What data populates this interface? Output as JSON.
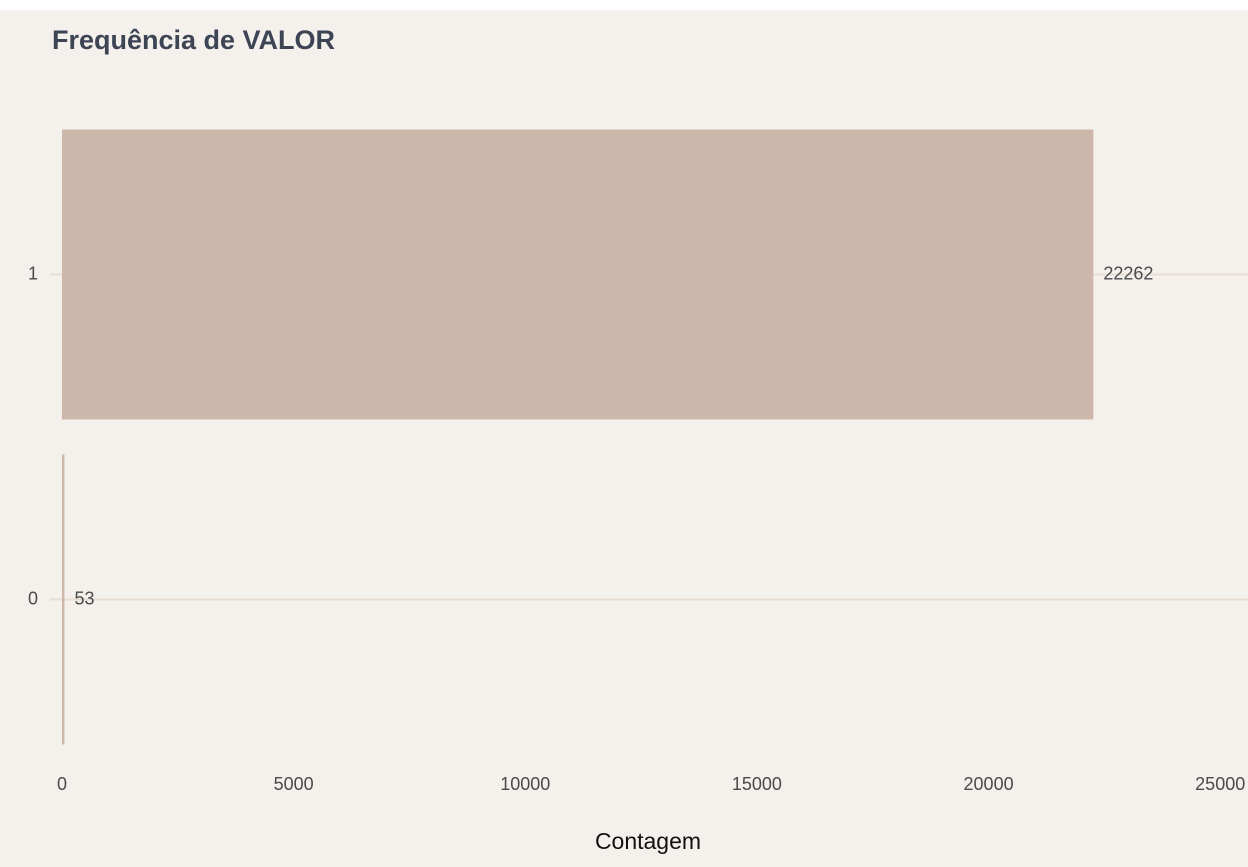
{
  "chart_data": {
    "type": "bar",
    "orientation": "horizontal",
    "title": "Frequência de VALOR",
    "x_label": "Contagem",
    "categories": [
      "1",
      "0"
    ],
    "values": [
      22262,
      53
    ],
    "color": "#cdb7aa",
    "xlim": [
      0,
      25600
    ],
    "xticks": [
      0,
      5000,
      10000,
      15000,
      20000,
      25000
    ],
    "grid": true
  }
}
